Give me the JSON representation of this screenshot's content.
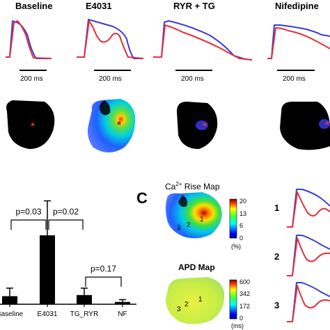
{
  "panelA": {
    "conditions": [
      {
        "label": "Baseline",
        "scale_bar": "200 ms"
      },
      {
        "label": "E4031",
        "scale_bar": "200 ms"
      },
      {
        "label": "RYR + TG",
        "scale_bar": "200 ms"
      },
      {
        "label": "Nifedipine",
        "scale_bar": "200 ms"
      }
    ],
    "trace_colors": {
      "voltage": "#3b3bd6",
      "calcium": "#e0303c"
    },
    "marker_symbol": "*"
  },
  "chart_data": {
    "type": "bar",
    "categories": [
      "Baseline",
      "E4031",
      "TG_RYR",
      "NF"
    ],
    "values": [
      0.7,
      6.0,
      0.8,
      0.2
    ],
    "errors": [
      0.7,
      3.0,
      0.6,
      0.2
    ],
    "ylim": [
      0,
      10
    ],
    "significance": [
      {
        "from": "Baseline",
        "to": "E4031",
        "label": "p=0.03"
      },
      {
        "from": "E4031",
        "to": "TG_RYR",
        "label": "p=0.02"
      },
      {
        "from": "TG_RYR",
        "to": "NF",
        "label": "p=0.17"
      }
    ]
  },
  "panelC": {
    "letter": "C",
    "ca_map": {
      "title_prefix": "Ca",
      "title_sup": "2+",
      "title_suffix": " Rise Map",
      "ticks": [
        "20",
        "13",
        "6",
        "0"
      ],
      "unit": "(%)",
      "site_labels": [
        "1",
        "2",
        "3"
      ]
    },
    "apd_map": {
      "title": "APD Map",
      "ticks": [
        "600",
        "342",
        "172",
        "0"
      ],
      "unit": "(ms)",
      "site_labels": [
        "1",
        "2",
        "3"
      ]
    },
    "trace_labels": [
      "1",
      "2",
      "3"
    ]
  }
}
